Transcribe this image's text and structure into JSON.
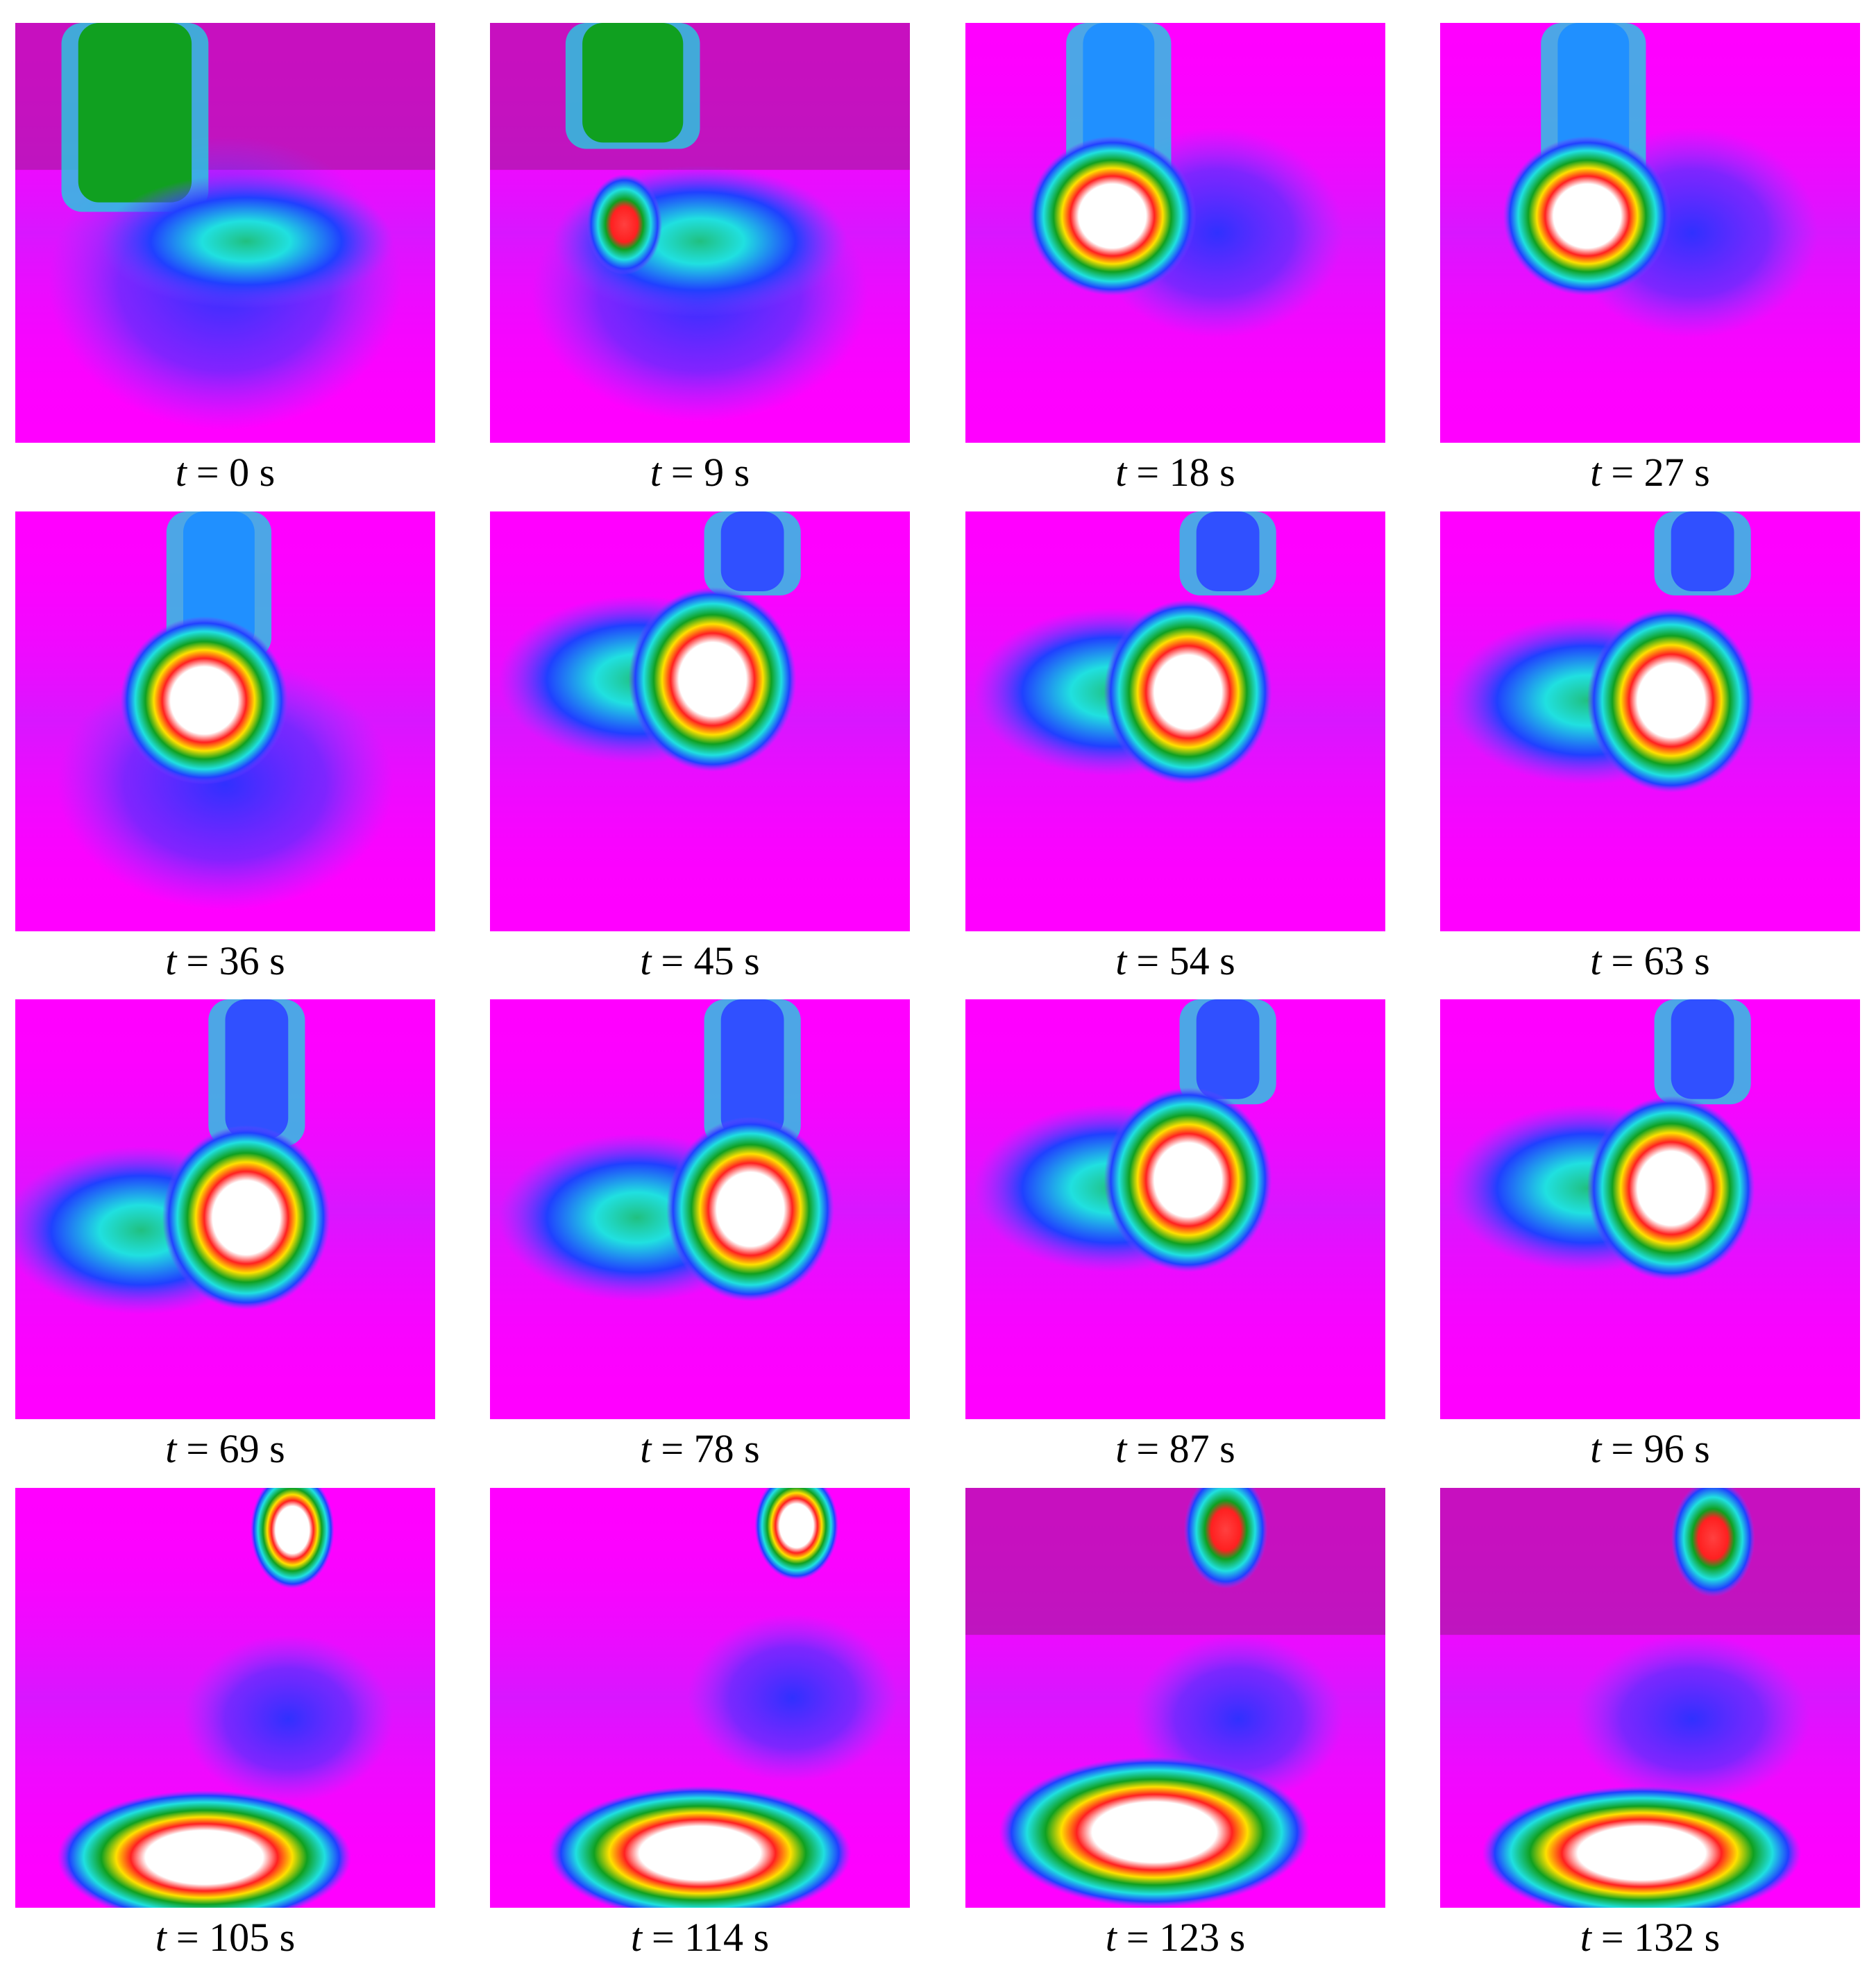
{
  "panels": [
    {
      "symbol": "t",
      "text": "= 0 s"
    },
    {
      "symbol": "t",
      "text": "= 9 s"
    },
    {
      "symbol": "t",
      "text": "= 18 s"
    },
    {
      "symbol": "t",
      "text": "= 27 s"
    },
    {
      "symbol": "t",
      "text": "= 36 s"
    },
    {
      "symbol": "t",
      "text": "= 45 s"
    },
    {
      "symbol": "t",
      "text": "= 54 s"
    },
    {
      "symbol": "t",
      "text": "= 63 s"
    },
    {
      "symbol": "t",
      "text": "= 69 s"
    },
    {
      "symbol": "t",
      "text": "= 78 s"
    },
    {
      "symbol": "t",
      "text": "= 87 s"
    },
    {
      "symbol": "t",
      "text": "= 96 s"
    },
    {
      "symbol": "t",
      "text": "= 105 s"
    },
    {
      "symbol": "t",
      "text": "= 114 s"
    },
    {
      "symbol": "t",
      "text": "= 123 s"
    },
    {
      "symbol": "t",
      "text": "= 132 s"
    }
  ]
}
